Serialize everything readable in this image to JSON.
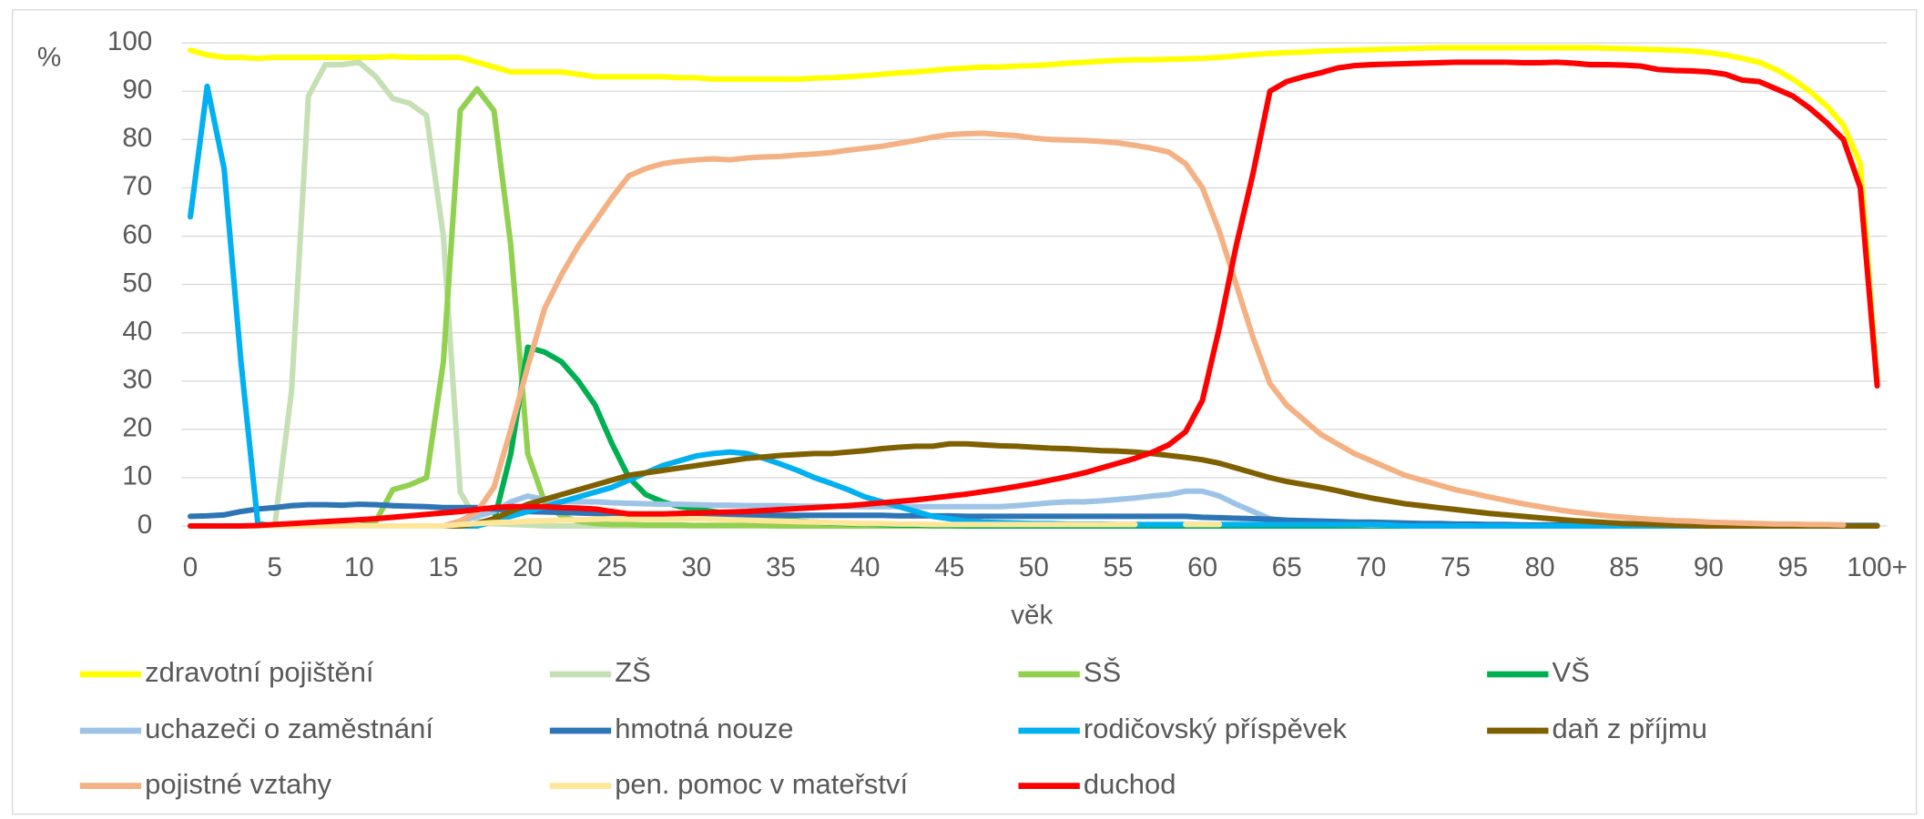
{
  "chart_data": {
    "type": "line",
    "y_unit": "%",
    "x_label": "věk",
    "categories": [
      "0",
      null,
      null,
      null,
      null,
      "5",
      null,
      null,
      null,
      null,
      "10",
      null,
      null,
      null,
      null,
      "15",
      null,
      null,
      null,
      null,
      "20",
      null,
      null,
      null,
      null,
      "25",
      null,
      null,
      null,
      null,
      "30",
      null,
      null,
      null,
      null,
      "35",
      null,
      null,
      null,
      null,
      "40",
      null,
      null,
      null,
      null,
      "45",
      null,
      null,
      null,
      null,
      "50",
      null,
      null,
      null,
      null,
      "55",
      null,
      null,
      null,
      null,
      "60",
      null,
      null,
      null,
      null,
      "65",
      null,
      null,
      null,
      null,
      "70",
      null,
      null,
      null,
      null,
      "75",
      null,
      null,
      null,
      null,
      "80",
      null,
      null,
      null,
      null,
      "85",
      null,
      null,
      null,
      null,
      "90",
      null,
      null,
      null,
      null,
      "95",
      null,
      null,
      null,
      null,
      "100+"
    ],
    "ylim": [
      0,
      100
    ],
    "yticks": [
      0,
      10,
      20,
      30,
      40,
      50,
      60,
      70,
      80,
      90,
      100
    ],
    "grid": true,
    "series": [
      {
        "name": "zdravotní pojištění",
        "color": "#ffff00",
        "values": [
          98.5,
          97.5,
          97,
          97,
          96.8,
          97,
          97,
          97,
          97,
          97,
          97,
          97,
          97.2,
          97,
          97,
          97,
          97,
          96,
          95,
          94,
          94,
          94,
          94,
          93.5,
          93,
          93,
          93,
          93,
          93,
          92.8,
          92.8,
          92.5,
          92.5,
          92.5,
          92.5,
          92.5,
          92.5,
          92.7,
          92.8,
          93,
          93.2,
          93.5,
          93.8,
          94,
          94.3,
          94.6,
          94.8,
          95,
          95,
          95.2,
          95.3,
          95.5,
          95.8,
          96,
          96.2,
          96.4,
          96.5,
          96.5,
          96.6,
          96.7,
          96.8,
          97,
          97.3,
          97.6,
          97.8,
          98,
          98.1,
          98.3,
          98.4,
          98.5,
          98.6,
          98.7,
          98.8,
          98.9,
          99,
          99,
          99,
          99,
          99,
          99,
          99,
          99,
          99,
          99,
          98.9,
          98.8,
          98.7,
          98.6,
          98.5,
          98.3,
          98,
          97.5,
          96.8,
          96,
          94.5,
          92.5,
          90,
          87,
          83,
          75,
          30
        ]
      },
      {
        "name": "ZŠ",
        "color": "#c5e0b4",
        "values": [
          0,
          0,
          0,
          0,
          0,
          0,
          28,
          89,
          95.5,
          95.5,
          96,
          93,
          88.5,
          87.5,
          85,
          60,
          7,
          1,
          0.5,
          0.3,
          0.2,
          0,
          0,
          0,
          0,
          0,
          0,
          0,
          0,
          0,
          0,
          0,
          0,
          0,
          0,
          0,
          0,
          0,
          0,
          0,
          0,
          0,
          0,
          0,
          0,
          0,
          0,
          0,
          0,
          0,
          0,
          0,
          0,
          0,
          0,
          0,
          0,
          0,
          0,
          0,
          0,
          0,
          0,
          0,
          0,
          0,
          0,
          0,
          0,
          0,
          0,
          0,
          0,
          0,
          0,
          0,
          0,
          0,
          0,
          0,
          0,
          0,
          0,
          0,
          0,
          0,
          0,
          0,
          0,
          0,
          0,
          0,
          0,
          0,
          0,
          0,
          0,
          0,
          0,
          0,
          0
        ]
      },
      {
        "name": "SŠ",
        "color": "#92d050",
        "values": [
          0,
          0,
          0,
          0,
          0,
          0,
          0,
          0,
          0,
          0,
          0,
          1,
          7.5,
          8.5,
          10,
          34,
          86,
          90.5,
          86,
          58,
          15,
          5,
          2,
          1,
          0.5,
          0.3,
          0.3,
          0.2,
          0.2,
          0.2,
          0.1,
          0.1,
          0.1,
          0.1,
          0.1,
          0,
          0,
          0,
          0,
          0,
          0,
          0,
          0,
          0,
          0,
          0,
          0,
          0,
          0,
          0,
          0,
          0,
          0,
          0,
          0,
          0,
          0,
          0,
          0,
          0,
          0,
          0,
          0,
          0,
          0,
          0,
          0,
          0,
          0,
          0,
          0,
          0,
          0,
          0,
          0,
          0,
          0,
          0,
          0,
          0,
          0,
          0,
          0,
          0,
          0,
          0,
          0,
          0,
          0,
          0,
          0,
          0,
          0,
          0,
          0,
          0,
          0,
          0,
          0,
          0,
          0
        ]
      },
      {
        "name": "VŠ",
        "color": "#00b050",
        "values": [
          0,
          0,
          0,
          0,
          0,
          0,
          0,
          0,
          0,
          0,
          0,
          0,
          0,
          0,
          0,
          0,
          0,
          0,
          1,
          15,
          37,
          36,
          34,
          30,
          25,
          17,
          10,
          6.5,
          5,
          4,
          3.5,
          3,
          2.5,
          2,
          1.5,
          1.2,
          1,
          0.8,
          0.6,
          0.5,
          0.4,
          0.3,
          0.2,
          0.2,
          0.1,
          0.1,
          0,
          0,
          0,
          0,
          0,
          0,
          0,
          0,
          0,
          0,
          0,
          0,
          0,
          0,
          0,
          0,
          0,
          0,
          0,
          0,
          0,
          0,
          0,
          0,
          0,
          0,
          0,
          0,
          0,
          0,
          0,
          0,
          0,
          0,
          0,
          0,
          0,
          0,
          0,
          0,
          0,
          0,
          0,
          0,
          0,
          0,
          0,
          0,
          0,
          0,
          0,
          0,
          0,
          0,
          0
        ]
      },
      {
        "name": "uchazeči o zaměstnání",
        "color": "#9dc3e6",
        "values": [
          0,
          0,
          0,
          0,
          0,
          0,
          0,
          0,
          0,
          0,
          0,
          0,
          0,
          0,
          0,
          0,
          1,
          2,
          3,
          5,
          6.2,
          5.5,
          5,
          5,
          5,
          4.8,
          4.7,
          4.6,
          4.5,
          4.5,
          4.4,
          4.3,
          4.3,
          4.2,
          4.2,
          4.2,
          4.1,
          4.1,
          4.1,
          4,
          4,
          4,
          4,
          4,
          4,
          4,
          4,
          4,
          4,
          4.2,
          4.5,
          4.8,
          5,
          5,
          5.2,
          5.5,
          5.8,
          6.2,
          6.5,
          7.2,
          7.2,
          6.2,
          4.5,
          3,
          1.5,
          0.8,
          0.5,
          0.4,
          0.3,
          0.3,
          0.2,
          0.2,
          0.1,
          0.1,
          0.1,
          0,
          0,
          0,
          0,
          0,
          0,
          0,
          0,
          0,
          0,
          0,
          0,
          0,
          0,
          0,
          0,
          0,
          0,
          0,
          0,
          0,
          0,
          0,
          0,
          0,
          0
        ]
      },
      {
        "name": "hmotná nouze",
        "color": "#2e75b6",
        "values": [
          2,
          2.1,
          2.3,
          3,
          3.5,
          3.8,
          4.2,
          4.4,
          4.4,
          4.3,
          4.5,
          4.4,
          4.2,
          4.1,
          4,
          3.8,
          3.8,
          3.8,
          3.5,
          3.2,
          3,
          2.9,
          2.8,
          2.7,
          2.6,
          2.5,
          2.5,
          2.4,
          2.3,
          2.3,
          2.2,
          2.2,
          2.2,
          2.2,
          2.2,
          2.2,
          2.2,
          2.2,
          2.2,
          2.2,
          2.2,
          2.2,
          2.1,
          2.1,
          2.1,
          2.1,
          2,
          2,
          2,
          2,
          2,
          2,
          2,
          2,
          2,
          2,
          2,
          2,
          2,
          2,
          1.8,
          1.7,
          1.6,
          1.5,
          1.4,
          1.2,
          1.1,
          1,
          0.9,
          0.8,
          0.8,
          0.7,
          0.6,
          0.5,
          0.5,
          0.4,
          0.4,
          0.3,
          0.3,
          0.2,
          0.2,
          0.2,
          0.2,
          0.1,
          0.1,
          0.1,
          0.1,
          0.1,
          0.1,
          0.1,
          0.1,
          0.1,
          0.1,
          0.1,
          0.1,
          0.1,
          0.1,
          0.1,
          0.1,
          0.1,
          0.1
        ]
      },
      {
        "name": "rodičovský příspěvek",
        "color": "#00b0f0",
        "values": [
          64,
          91,
          74,
          34,
          0.5,
          0,
          0,
          0,
          0,
          0,
          0,
          0,
          0,
          0,
          0,
          0,
          0,
          0,
          1,
          2,
          3,
          4,
          5,
          6,
          7,
          8,
          9.5,
          11,
          12.5,
          13.5,
          14.5,
          15,
          15.3,
          15,
          14,
          12.8,
          11.5,
          10,
          8.8,
          7.5,
          6,
          5,
          4,
          3,
          2,
          1.5,
          1,
          0.8,
          0.7,
          0.6,
          0.5,
          0.5,
          0.4,
          0.4,
          0.4,
          0.3,
          0.3,
          0.3,
          0.3,
          0.3,
          0.3,
          0.3,
          0.3,
          0.3,
          0.3,
          0.3,
          0.3,
          0.3,
          0.3,
          0.3,
          0.3,
          0.2,
          0,
          0,
          0,
          0,
          0,
          0,
          0,
          0,
          0,
          0,
          0,
          0,
          0,
          0,
          0,
          0,
          0,
          0,
          0,
          0,
          0,
          0,
          0,
          0,
          0,
          0,
          0,
          0,
          0
        ]
      },
      {
        "name": "daň z příjmu",
        "color": "#7f6000",
        "values": [
          0,
          0,
          0,
          0,
          0,
          0,
          0,
          0,
          0,
          0,
          0,
          0,
          0,
          0,
          0,
          0,
          0,
          0.5,
          1.5,
          3,
          4.5,
          5.5,
          6.5,
          7.5,
          8.5,
          9.5,
          10.5,
          11,
          11.5,
          12,
          12.5,
          13,
          13.5,
          14,
          14.3,
          14.6,
          14.8,
          15,
          15,
          15.3,
          15.6,
          16,
          16.3,
          16.5,
          16.5,
          17,
          17,
          16.8,
          16.6,
          16.5,
          16.3,
          16.1,
          16,
          15.8,
          15.6,
          15.5,
          15.3,
          15,
          14.6,
          14.2,
          13.7,
          13,
          12,
          11,
          10,
          9.2,
          8.6,
          8,
          7.3,
          6.5,
          5.8,
          5.2,
          4.6,
          4.2,
          3.8,
          3.4,
          3,
          2.6,
          2.3,
          2,
          1.7,
          1.4,
          1.1,
          0.9,
          0.7,
          0.5,
          0.4,
          0.3,
          0.2,
          0.1,
          0,
          0,
          0,
          0,
          0,
          0,
          0,
          0,
          0,
          0,
          0
        ]
      },
      {
        "name": "pojistné vztahy",
        "color": "#f4b183",
        "values": [
          0,
          0,
          0,
          0,
          0,
          0,
          0,
          0,
          0,
          0,
          0,
          0,
          0,
          0,
          0,
          0,
          1,
          3,
          8,
          20,
          33,
          45,
          52,
          58,
          63,
          68,
          72.5,
          74,
          75,
          75.5,
          75.8,
          76,
          75.8,
          76.2,
          76.4,
          76.5,
          76.8,
          77,
          77.3,
          77.8,
          78.2,
          78.6,
          79.2,
          79.8,
          80.5,
          81,
          81.2,
          81.3,
          81,
          80.8,
          80.3,
          80,
          79.9,
          79.8,
          79.6,
          79.3,
          78.8,
          78.2,
          77.4,
          75,
          70,
          61,
          50,
          39,
          29.5,
          25,
          22,
          19,
          17,
          15,
          13.5,
          12,
          10.5,
          9.5,
          8.5,
          7.5,
          6.8,
          6,
          5.3,
          4.6,
          4,
          3.4,
          2.9,
          2.5,
          2.1,
          1.8,
          1.5,
          1.3,
          1.1,
          1,
          0.8,
          0.7,
          0.6,
          0.5,
          0.4,
          0.4,
          0.3,
          0.3,
          0.2,
          null,
          null
        ]
      },
      {
        "name": "pen. pomoc v mateřství",
        "color": "#ffe699",
        "values": [
          0,
          0,
          0,
          0,
          0,
          0,
          0,
          0,
          0,
          0,
          0,
          0,
          0,
          0,
          0,
          0,
          0.3,
          0.5,
          0.7,
          0.8,
          1,
          1.1,
          1.2,
          1.3,
          1.4,
          1.5,
          1.5,
          1.5,
          1.5,
          1.5,
          1.5,
          1.4,
          1.3,
          1.2,
          1.1,
          1,
          0.9,
          0.8,
          0.7,
          0.6,
          0.5,
          0.5,
          0.4,
          0.4,
          0.3,
          0.3,
          0.3,
          0.3,
          0.3,
          0.3,
          0.3,
          0.3,
          0.3,
          0.3,
          0.3,
          0.3,
          0.3,
          null,
          null,
          0.3,
          0.3,
          0.3,
          null,
          null,
          null,
          null,
          null,
          null,
          null,
          null,
          null,
          null,
          null,
          null,
          null,
          null,
          null,
          null,
          null,
          null,
          null,
          null,
          null,
          null,
          null,
          null,
          null,
          null,
          null,
          null,
          null,
          null,
          null,
          null,
          null,
          null,
          null,
          null,
          null,
          null,
          null
        ]
      },
      {
        "name": "duchod",
        "color": "#ff0000",
        "values": [
          0,
          0,
          0,
          0,
          0.1,
          0.3,
          0.5,
          0.7,
          0.9,
          1.1,
          1.3,
          1.5,
          1.8,
          2.1,
          2.4,
          2.7,
          3,
          3.4,
          3.8,
          4,
          4,
          4,
          3.8,
          3.7,
          3.5,
          3,
          2.5,
          2.5,
          2.5,
          2.6,
          2.7,
          2.8,
          2.9,
          3,
          3.2,
          3.4,
          3.6,
          3.8,
          4,
          4.2,
          4.5,
          4.8,
          5.1,
          5.4,
          5.8,
          6.2,
          6.6,
          7.1,
          7.6,
          8.2,
          8.8,
          9.5,
          10.2,
          11,
          12,
          13,
          14,
          15.2,
          16.8,
          19.5,
          26,
          41,
          58,
          73,
          90,
          92,
          93,
          93.8,
          94.8,
          95.3,
          95.5,
          95.6,
          95.7,
          95.8,
          95.9,
          96,
          96,
          96,
          96,
          95.9,
          95.9,
          96,
          95.8,
          95.5,
          95.5,
          95.4,
          95.2,
          94.5,
          94.3,
          94.2,
          94,
          93.5,
          92.3,
          92,
          90.5,
          89,
          86.5,
          83.5,
          80,
          70,
          29
        ]
      }
    ]
  }
}
